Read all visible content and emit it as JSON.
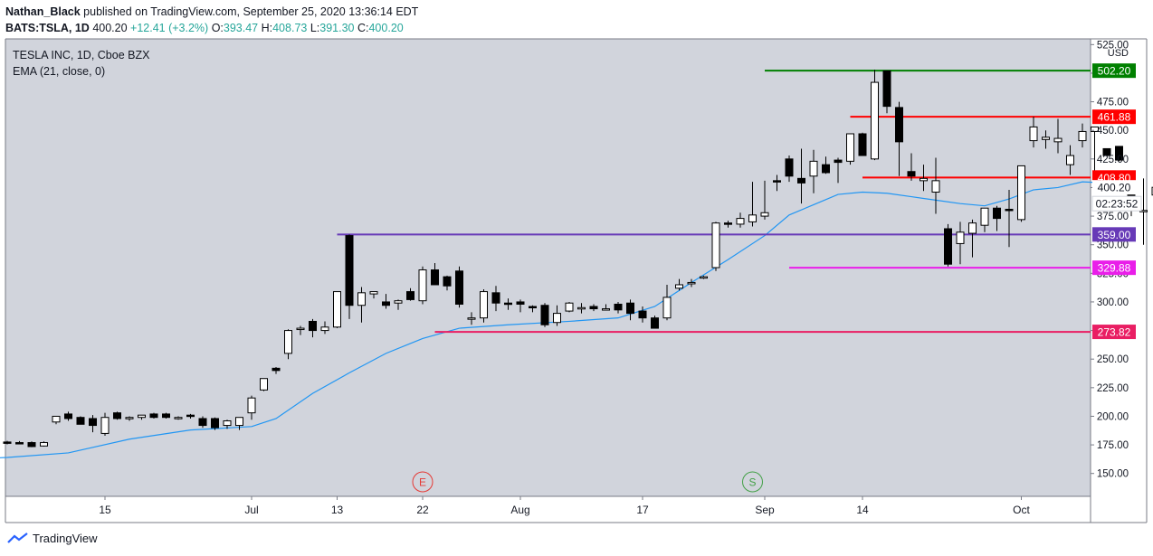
{
  "header": {
    "author": "Nathan_Black",
    "published_text": "published on TradingView.com, September 25, 2020 13:36:14 EDT",
    "symbol": "BATS:TSLA, 1D",
    "last": "400.20",
    "change": "+12.41 (+3.2%)",
    "o_label": "O:",
    "o_value": "393.47",
    "h_label": "H:",
    "h_value": "408.73",
    "l_label": "L:",
    "l_value": "391.30",
    "c_label": "C:",
    "c_value": "400.20"
  },
  "legend": {
    "title": "TESLA INC, 1D, Cboe BZX",
    "indicator": "EMA (21, close, 0)"
  },
  "footer": {
    "brand": "TradingView"
  },
  "colors": {
    "background": "#d1d4dc",
    "candle_up": "#ffffff",
    "candle_down": "#000000",
    "ema": "#2196f3",
    "level_green": "#008000",
    "level_red": "#ff0000",
    "level_purple": "#673ab7",
    "level_magenta": "#e91ee9",
    "level_crimson": "#e91e63"
  },
  "chart_data": {
    "type": "candlestick",
    "currency_label": "USD",
    "ylim": [
      130,
      530
    ],
    "y_ticks": [
      "150.00",
      "175.00",
      "200.00",
      "225.00",
      "250.00",
      "275.00",
      "300.00",
      "325.00",
      "350.00",
      "375.00",
      "400.00",
      "425.00",
      "450.00",
      "475.00",
      "500.00",
      "525.00"
    ],
    "x_ticks": [
      {
        "label": "15",
        "i": 8
      },
      {
        "label": "Jul",
        "i": 20
      },
      {
        "label": "13",
        "i": 27
      },
      {
        "label": "22",
        "i": 34
      },
      {
        "label": "Aug",
        "i": 42
      },
      {
        "label": "17",
        "i": 52
      },
      {
        "label": "Sep",
        "i": 62
      },
      {
        "label": "14",
        "i": 70
      },
      {
        "label": "Oct",
        "i": 83
      }
    ],
    "candles": [
      [
        177.5,
        178.5,
        175.5,
        176.5
      ],
      [
        177,
        178.3,
        175.5,
        176.5
      ],
      [
        177,
        178,
        173,
        173.5
      ],
      [
        174,
        178,
        173.5,
        177
      ],
      [
        195,
        200,
        193,
        200
      ],
      [
        202,
        204,
        196,
        198
      ],
      [
        199,
        200,
        193,
        193
      ],
      [
        198,
        201,
        186,
        192
      ],
      [
        185,
        203,
        183,
        199
      ],
      [
        203,
        204,
        197,
        198
      ],
      [
        199,
        200,
        196,
        199
      ],
      [
        199,
        201,
        197,
        201
      ],
      [
        202,
        203,
        198,
        199
      ],
      [
        202,
        203,
        198,
        199
      ],
      [
        199,
        200,
        197,
        199
      ],
      [
        201,
        202,
        198,
        200
      ],
      [
        198,
        200,
        190,
        192
      ],
      [
        198,
        199,
        188,
        190
      ],
      [
        192,
        197,
        189,
        196
      ],
      [
        192,
        199,
        188,
        199
      ],
      [
        203,
        218,
        197,
        216
      ],
      [
        223,
        233,
        222,
        233
      ],
      [
        242,
        243,
        237,
        240
      ],
      [
        255,
        276,
        250,
        275
      ],
      [
        276,
        279,
        271,
        277
      ],
      [
        283,
        285,
        269,
        275
      ],
      [
        275,
        283,
        272,
        278
      ],
      [
        278,
        309,
        277,
        309
      ],
      [
        358,
        359,
        285,
        297
      ],
      [
        297,
        313,
        282,
        308
      ],
      [
        307,
        309,
        303,
        309
      ],
      [
        300,
        307,
        294,
        297
      ],
      [
        299,
        302,
        293,
        301
      ],
      [
        309,
        312,
        301,
        302
      ],
      [
        301,
        331,
        298,
        328
      ],
      [
        328,
        334,
        315,
        315
      ],
      [
        322,
        323,
        310,
        314
      ],
      [
        327,
        331,
        295,
        298
      ],
      [
        286,
        291,
        280,
        286
      ],
      [
        286,
        311,
        282,
        309
      ],
      [
        308,
        314,
        292,
        299
      ],
      [
        299,
        303,
        293,
        298
      ],
      [
        300,
        302,
        291,
        298
      ],
      [
        296,
        297,
        291,
        295
      ],
      [
        297,
        299,
        278,
        280
      ],
      [
        282,
        297,
        279,
        290
      ],
      [
        292,
        300,
        291,
        299
      ],
      [
        294,
        299,
        290,
        295
      ],
      [
        296,
        298,
        292,
        294
      ],
      [
        294,
        298,
        293,
        294
      ],
      [
        298,
        300,
        290,
        293
      ],
      [
        299,
        302,
        284,
        290
      ],
      [
        292,
        296,
        282,
        286
      ],
      [
        286,
        288,
        277,
        277
      ],
      [
        286,
        315,
        284,
        304
      ],
      [
        312,
        320,
        310,
        315
      ],
      [
        316,
        320,
        313,
        317
      ],
      [
        321,
        323,
        320,
        322
      ],
      [
        330,
        370,
        327,
        369
      ],
      [
        369,
        371,
        365,
        368
      ],
      [
        368,
        378,
        365,
        373
      ],
      [
        370,
        405,
        366,
        376
      ],
      [
        375,
        406,
        372,
        378
      ],
      [
        406,
        411,
        397,
        405
      ],
      [
        425,
        428,
        405,
        410
      ],
      [
        408,
        434,
        386,
        404
      ],
      [
        410,
        433,
        395,
        423
      ],
      [
        420,
        427,
        412,
        413
      ],
      [
        424,
        426,
        404,
        422
      ],
      [
        423,
        447,
        420,
        447
      ],
      [
        447,
        448,
        428,
        428
      ],
      [
        425,
        503,
        424,
        492
      ],
      [
        502,
        502,
        465,
        471
      ],
      [
        470,
        475,
        410,
        440
      ],
      [
        414,
        430,
        406,
        410
      ],
      [
        406,
        420,
        397,
        408
      ],
      [
        396,
        426,
        377,
        406
      ],
      [
        364,
        368,
        331,
        333
      ],
      [
        351,
        370,
        333,
        361
      ],
      [
        360,
        372,
        339,
        369
      ],
      [
        367,
        380,
        361,
        382
      ],
      [
        382,
        384,
        362,
        373
      ],
      [
        381,
        398,
        348,
        380
      ],
      [
        372,
        419,
        370,
        419
      ],
      [
        441,
        462,
        435,
        453
      ],
      [
        442,
        450,
        434,
        444
      ],
      [
        440,
        460,
        430,
        443
      ],
      [
        420,
        437,
        411,
        428
      ],
      [
        441,
        456,
        435,
        449
      ],
      [
        449,
        453,
        411,
        453
      ],
      [
        434,
        433,
        428,
        428
      ],
      [
        436,
        434,
        423,
        424
      ],
      [
        412,
        415,
        375,
        387
      ],
      [
        380,
        408,
        350,
        380
      ],
      [
        393.47,
        408.73,
        391.3,
        400.2
      ]
    ],
    "ema": [
      {
        "i": -5,
        "v": 162
      },
      {
        "i": 0,
        "v": 164
      },
      {
        "i": 5,
        "v": 168
      },
      {
        "i": 10,
        "v": 180
      },
      {
        "i": 15,
        "v": 188
      },
      {
        "i": 20,
        "v": 191
      },
      {
        "i": 22,
        "v": 198
      },
      {
        "i": 25,
        "v": 220
      },
      {
        "i": 28,
        "v": 238
      },
      {
        "i": 31,
        "v": 255
      },
      {
        "i": 34,
        "v": 268
      },
      {
        "i": 37,
        "v": 277
      },
      {
        "i": 41,
        "v": 280
      },
      {
        "i": 46,
        "v": 283
      },
      {
        "i": 50,
        "v": 286
      },
      {
        "i": 53,
        "v": 296
      },
      {
        "i": 56,
        "v": 317
      },
      {
        "i": 59,
        "v": 337
      },
      {
        "i": 62,
        "v": 358
      },
      {
        "i": 64,
        "v": 376
      },
      {
        "i": 66,
        "v": 385
      },
      {
        "i": 68,
        "v": 394
      },
      {
        "i": 70,
        "v": 396
      },
      {
        "i": 72,
        "v": 395
      },
      {
        "i": 74,
        "v": 392
      },
      {
        "i": 76,
        "v": 389
      },
      {
        "i": 78,
        "v": 386
      },
      {
        "i": 80,
        "v": 384
      },
      {
        "i": 82,
        "v": 390
      },
      {
        "i": 84,
        "v": 398
      },
      {
        "i": 86,
        "v": 400
      },
      {
        "i": 88,
        "v": 405
      },
      {
        "i": 90,
        "v": 404
      },
      {
        "i": 92,
        "v": 404
      }
    ],
    "levels": [
      {
        "value": "502.20",
        "y": 502.2,
        "from": "Sep",
        "color": "#008000"
      },
      {
        "value": "461.88",
        "y": 461.88,
        "from": "14",
        "color": "#ff0000"
      },
      {
        "value": "408.80",
        "y": 408.8,
        "from": "14",
        "color": "#ff0000"
      },
      {
        "value": "359.00",
        "y": 359.0,
        "from": "13",
        "color": "#673ab7"
      },
      {
        "value": "329.88",
        "y": 329.88,
        "from": "Sep",
        "color": "#e91ee9"
      },
      {
        "value": "273.82",
        "y": 273.82,
        "from": "22",
        "color": "#e91e63"
      }
    ],
    "level_starts": [
      62,
      69,
      70,
      27,
      64,
      35
    ],
    "current_price": {
      "value": "400.20",
      "countdown": "02:23:52"
    },
    "events": [
      {
        "label": "E",
        "i": 34,
        "color": "#e53935"
      },
      {
        "label": "S",
        "i": 61,
        "color": "#43a047"
      }
    ]
  }
}
